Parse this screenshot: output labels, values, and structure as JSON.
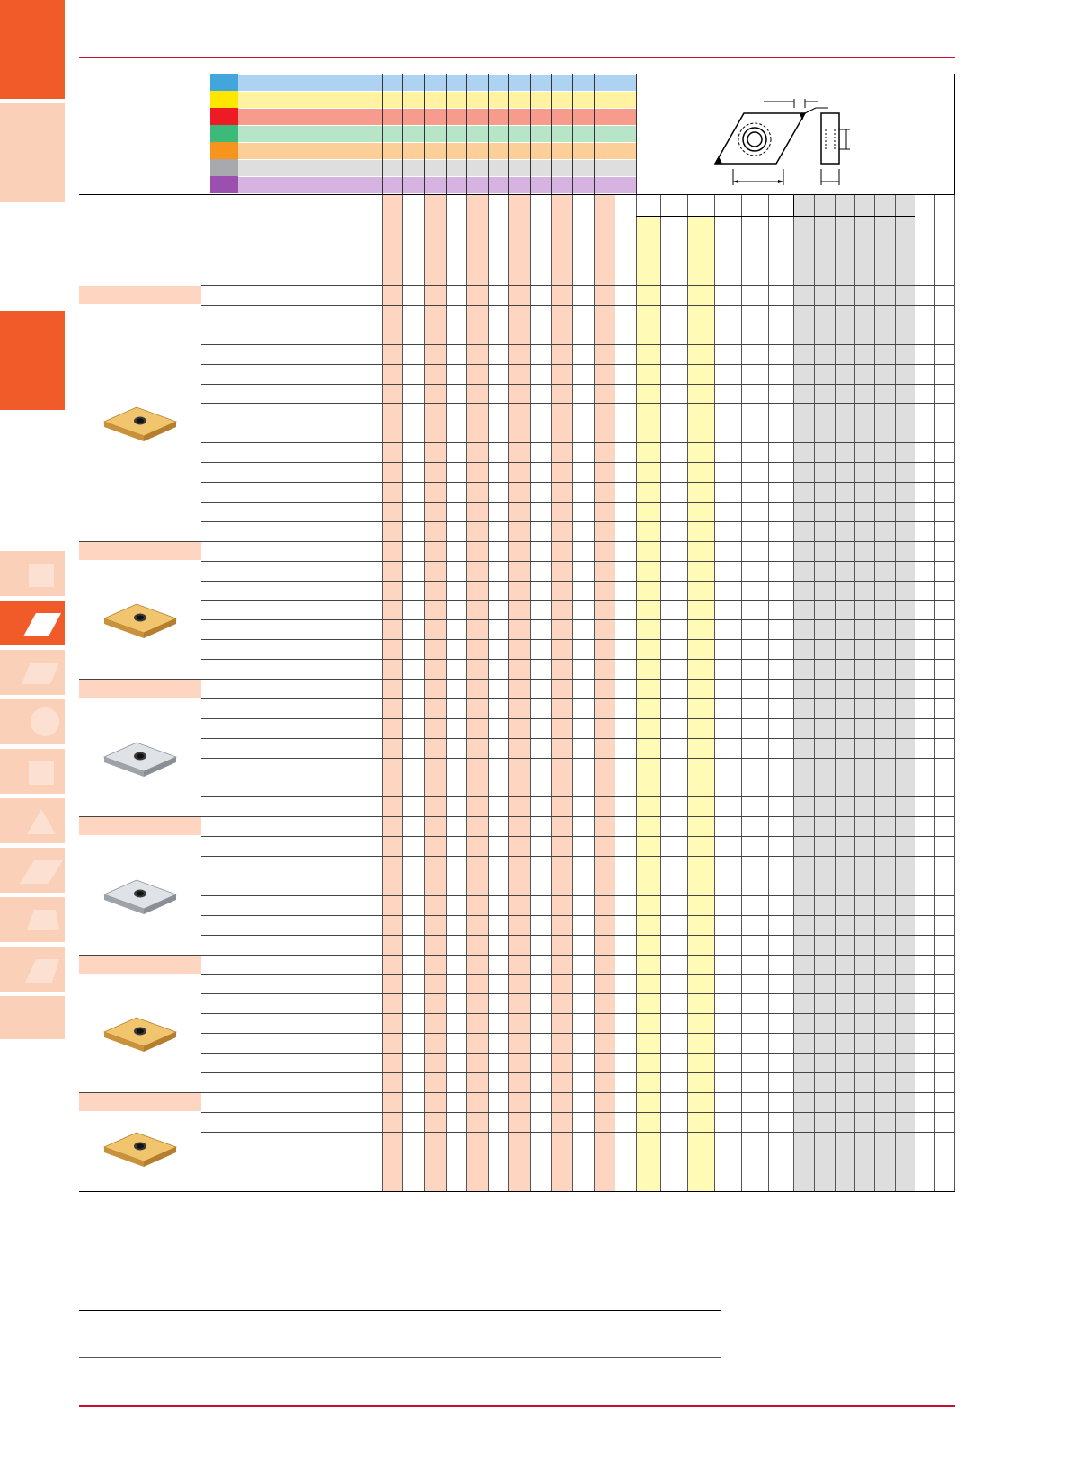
{
  "colors": {
    "accent": "#f15a29",
    "accent_light": "#fbd0b8",
    "rule_red": "#c8102e",
    "peach_band": "#fdd5c0",
    "yellow_band": "#fffbb7",
    "gray_band": "#dedede",
    "gold_insert": "#e2b461",
    "silver_insert": "#c9ccd1"
  },
  "material_groups": [
    {
      "color": "#42a5dc",
      "band": "#aed3f2"
    },
    {
      "color": "#ffe600",
      "band": "#fff2a0"
    },
    {
      "color": "#ed1c24",
      "band": "#f79b8c"
    },
    {
      "color": "#3db97a",
      "band": "#b7e5c8"
    },
    {
      "color": "#f7941d",
      "band": "#fccf98"
    },
    {
      "color": "#a7a9ac",
      "band": "#dedede"
    },
    {
      "color": "#9b4fae",
      "band": "#d6b3e0"
    }
  ],
  "side_tabs": [
    {
      "icon": "square-insert-icon"
    },
    {
      "icon": "rhombic-insert-icon",
      "active": true
    },
    {
      "icon": "rhombic-35-insert-icon"
    },
    {
      "icon": "round-insert-icon"
    },
    {
      "icon": "square-insert-outline-icon"
    },
    {
      "icon": "triangle-insert-icon"
    },
    {
      "icon": "parallelogram-insert-icon"
    },
    {
      "icon": "trigon-insert-icon"
    },
    {
      "icon": "rhombic-80-insert-icon"
    }
  ],
  "sections": [
    {
      "rows": 13,
      "insert_icon": "gold-rhombic-insert-icon"
    },
    {
      "rows": 7,
      "insert_icon": "gold-rhombic-insert-icon"
    },
    {
      "rows": 7,
      "insert_icon": "silver-rhombic-insert-icon"
    },
    {
      "rows": 7,
      "insert_icon": "silver-rhombic-insert-icon"
    },
    {
      "rows": 7,
      "insert_icon": "gold-rhombic-insert-icon"
    },
    {
      "rows": 3,
      "insert_icon": "gold-rhombic-insert-icon"
    }
  ],
  "diagram": {
    "icon": "insert-dimension-diagram-icon"
  }
}
